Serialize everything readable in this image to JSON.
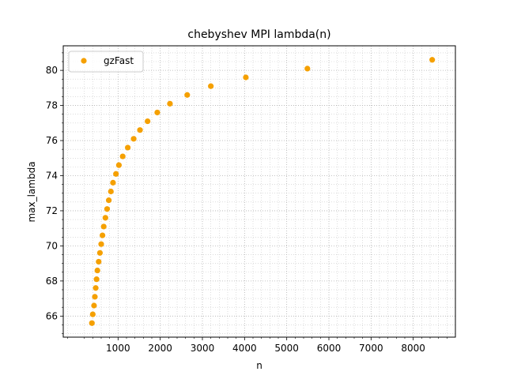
{
  "chart_data": {
    "type": "scatter",
    "title": "chebyshev MPI lambda(n)",
    "xlabel": "n",
    "ylabel": "max_lambda",
    "xlim": [
      -300,
      9000
    ],
    "ylim": [
      64.8,
      81.4
    ],
    "xticks": [
      1000,
      2000,
      3000,
      4000,
      5000,
      6000,
      7000,
      8000
    ],
    "yticks": [
      66,
      68,
      70,
      72,
      74,
      76,
      78,
      80
    ],
    "grid": true,
    "minor_grid": true,
    "legend_position": "upper-left",
    "series": [
      {
        "name": "gzFast",
        "color": "#f5a000",
        "marker": "circle",
        "points": [
          [
            380,
            65.6
          ],
          [
            400,
            66.1
          ],
          [
            430,
            66.6
          ],
          [
            450,
            67.1
          ],
          [
            470,
            67.6
          ],
          [
            490,
            68.1
          ],
          [
            510,
            68.6
          ],
          [
            540,
            69.1
          ],
          [
            570,
            69.6
          ],
          [
            600,
            70.1
          ],
          [
            630,
            70.6
          ],
          [
            660,
            71.1
          ],
          [
            700,
            71.6
          ],
          [
            740,
            72.1
          ],
          [
            780,
            72.6
          ],
          [
            830,
            73.1
          ],
          [
            880,
            73.6
          ],
          [
            950,
            74.1
          ],
          [
            1020,
            74.6
          ],
          [
            1110,
            75.1
          ],
          [
            1230,
            75.6
          ],
          [
            1370,
            76.1
          ],
          [
            1520,
            76.6
          ],
          [
            1700,
            77.1
          ],
          [
            1930,
            77.6
          ],
          [
            2230,
            78.1
          ],
          [
            2640,
            78.6
          ],
          [
            3200,
            79.1
          ],
          [
            4030,
            79.6
          ],
          [
            5490,
            80.1
          ],
          [
            8450,
            80.6
          ]
        ]
      }
    ]
  }
}
